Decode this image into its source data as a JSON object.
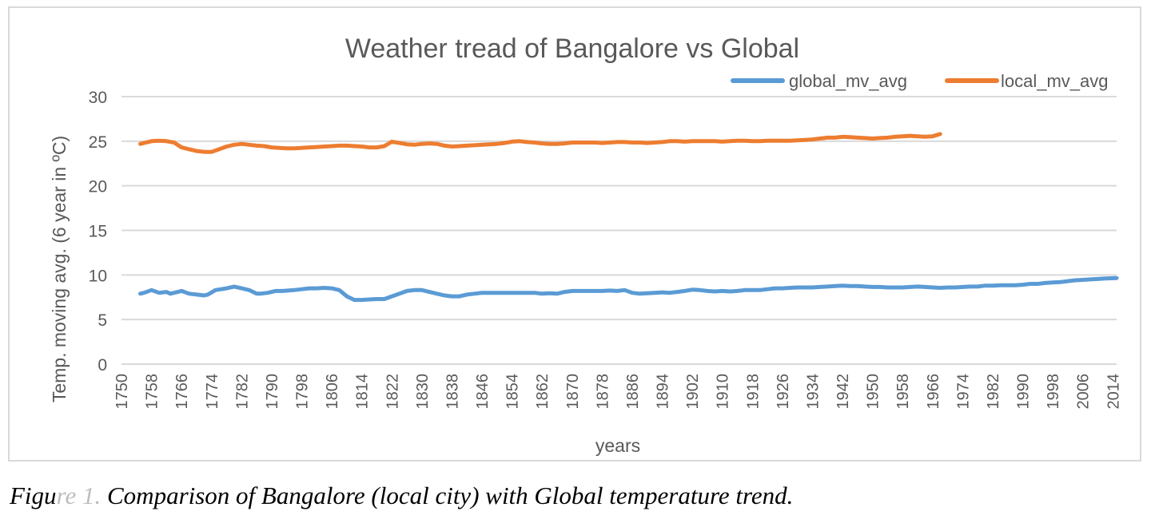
{
  "caption": {
    "prefix": "Figu",
    "number": "re 1.",
    "text": " Comparison of Bangalore (local city) with Global temperature trend."
  },
  "chart_data": {
    "type": "line",
    "title": "Weather tread of Bangalore vs Global",
    "xlabel": "years",
    "ylabel": "Temp. moving avg. (6 year in ºC)",
    "ylim": [
      0,
      30
    ],
    "yticks": [
      0,
      5,
      10,
      15,
      20,
      25,
      30
    ],
    "xlim": [
      1750,
      2015
    ],
    "xticks": [
      "1750",
      "1758",
      "1766",
      "1774",
      "1782",
      "1790",
      "1798",
      "1806",
      "1814",
      "1822",
      "1830",
      "1838",
      "1846",
      "1854",
      "1862",
      "1870",
      "1878",
      "1886",
      "1894",
      "1902",
      "1910",
      "1918",
      "1926",
      "1934",
      "1942",
      "1950",
      "1958",
      "1966",
      "1974",
      "1982",
      "1990",
      "1998",
      "2006",
      "2014"
    ],
    "grid": "horizontal",
    "legend_position": "top-right",
    "series": [
      {
        "name": "global_mv_avg",
        "color": "#5b9bd5",
        "x": [
          1755,
          1756,
          1758,
          1760,
          1762,
          1763,
          1765,
          1766,
          1768,
          1770,
          1772,
          1773,
          1775,
          1778,
          1780,
          1782,
          1784,
          1786,
          1787,
          1789,
          1791,
          1793,
          1796,
          1798,
          1800,
          1802,
          1804,
          1806,
          1808,
          1810,
          1812,
          1814,
          1816,
          1818,
          1820,
          1822,
          1824,
          1826,
          1828,
          1830,
          1832,
          1834,
          1836,
          1838,
          1840,
          1842,
          1844,
          1846,
          1848,
          1850,
          1852,
          1854,
          1856,
          1858,
          1860,
          1862,
          1864,
          1866,
          1868,
          1870,
          1872,
          1874,
          1876,
          1878,
          1880,
          1882,
          1884,
          1886,
          1888,
          1890,
          1892,
          1894,
          1896,
          1898,
          1900,
          1902,
          1904,
          1906,
          1908,
          1910,
          1912,
          1914,
          1916,
          1918,
          1920,
          1922,
          1924,
          1926,
          1928,
          1930,
          1932,
          1934,
          1936,
          1938,
          1940,
          1942,
          1944,
          1946,
          1948,
          1950,
          1952,
          1954,
          1956,
          1958,
          1960,
          1962,
          1964,
          1966,
          1968,
          1970,
          1972,
          1974,
          1976,
          1978,
          1980,
          1982,
          1984,
          1986,
          1988,
          1990,
          1992,
          1994,
          1996,
          1998,
          2000,
          2002,
          2004,
          2006,
          2008,
          2010,
          2012,
          2015
        ],
        "values": [
          7.9,
          8.0,
          8.3,
          8.0,
          8.1,
          7.9,
          8.1,
          8.2,
          7.9,
          7.8,
          7.7,
          7.8,
          8.3,
          8.5,
          8.7,
          8.5,
          8.3,
          7.9,
          7.9,
          8.0,
          8.2,
          8.2,
          8.3,
          8.4,
          8.5,
          8.5,
          8.55,
          8.5,
          8.3,
          7.6,
          7.2,
          7.2,
          7.25,
          7.3,
          7.3,
          7.6,
          7.9,
          8.2,
          8.3,
          8.3,
          8.1,
          7.9,
          7.7,
          7.6,
          7.6,
          7.8,
          7.9,
          8.0,
          8.0,
          8.0,
          8.0,
          8.0,
          8.0,
          8.0,
          8.0,
          7.9,
          7.95,
          7.9,
          8.1,
          8.2,
          8.2,
          8.2,
          8.2,
          8.2,
          8.25,
          8.2,
          8.3,
          8.0,
          7.9,
          7.95,
          8.0,
          8.05,
          8.0,
          8.1,
          8.2,
          8.35,
          8.3,
          8.2,
          8.15,
          8.2,
          8.15,
          8.2,
          8.3,
          8.3,
          8.3,
          8.4,
          8.5,
          8.5,
          8.55,
          8.6,
          8.6,
          8.6,
          8.65,
          8.7,
          8.75,
          8.8,
          8.75,
          8.75,
          8.7,
          8.65,
          8.65,
          8.6,
          8.6,
          8.6,
          8.65,
          8.7,
          8.65,
          8.6,
          8.55,
          8.6,
          8.6,
          8.65,
          8.7,
          8.7,
          8.8,
          8.8,
          8.85,
          8.85,
          8.85,
          8.9,
          9.0,
          9.0,
          9.1,
          9.15,
          9.2,
          9.3,
          9.4,
          9.45,
          9.5,
          9.55,
          9.6,
          9.65
        ]
      },
      {
        "name": "local_mv_avg",
        "color": "#ed7d31",
        "x": [
          1755,
          1756,
          1758,
          1760,
          1762,
          1764,
          1766,
          1768,
          1770,
          1772,
          1774,
          1776,
          1778,
          1780,
          1782,
          1784,
          1786,
          1788,
          1790,
          1792,
          1794,
          1796,
          1798,
          1800,
          1802,
          1804,
          1806,
          1808,
          1810,
          1812,
          1814,
          1816,
          1818,
          1820,
          1822,
          1824,
          1826,
          1828,
          1830,
          1832,
          1834,
          1836,
          1838,
          1840,
          1842,
          1844,
          1846,
          1848,
          1850,
          1852,
          1854,
          1856,
          1858,
          1860,
          1862,
          1864,
          1866,
          1868,
          1870,
          1872,
          1874,
          1876,
          1878,
          1880,
          1882,
          1884,
          1886,
          1888,
          1890,
          1892,
          1894,
          1896,
          1898,
          1900,
          1902,
          1904,
          1906,
          1908,
          1910,
          1912,
          1914,
          1916,
          1918,
          1920,
          1922,
          1924,
          1926,
          1928,
          1930,
          1932,
          1934,
          1936,
          1938,
          1940,
          1942,
          1944,
          1946,
          1948,
          1950,
          1952,
          1954,
          1956,
          1958,
          1960,
          1962,
          1964,
          1966,
          1968
        ],
        "values": [
          24.7,
          24.8,
          25.0,
          25.05,
          25.0,
          24.85,
          24.3,
          24.1,
          23.9,
          23.8,
          23.8,
          24.1,
          24.4,
          24.6,
          24.7,
          24.6,
          24.5,
          24.45,
          24.3,
          24.25,
          24.2,
          24.2,
          24.25,
          24.3,
          24.35,
          24.4,
          24.45,
          24.5,
          24.5,
          24.45,
          24.4,
          24.3,
          24.3,
          24.45,
          24.95,
          24.8,
          24.65,
          24.6,
          24.7,
          24.75,
          24.7,
          24.5,
          24.4,
          24.45,
          24.5,
          24.55,
          24.6,
          24.65,
          24.7,
          24.8,
          24.95,
          25.0,
          24.9,
          24.85,
          24.75,
          24.7,
          24.7,
          24.75,
          24.85,
          24.85,
          24.85,
          24.85,
          24.8,
          24.85,
          24.9,
          24.9,
          24.85,
          24.85,
          24.8,
          24.85,
          24.9,
          25.0,
          25.0,
          24.95,
          25.0,
          25.0,
          25.0,
          25.0,
          24.95,
          25.0,
          25.05,
          25.05,
          25.0,
          25.0,
          25.05,
          25.05,
          25.05,
          25.05,
          25.1,
          25.15,
          25.2,
          25.3,
          25.4,
          25.4,
          25.5,
          25.45,
          25.4,
          25.35,
          25.3,
          25.35,
          25.4,
          25.5,
          25.55,
          25.6,
          25.55,
          25.5,
          25.55,
          25.8
        ]
      }
    ]
  }
}
